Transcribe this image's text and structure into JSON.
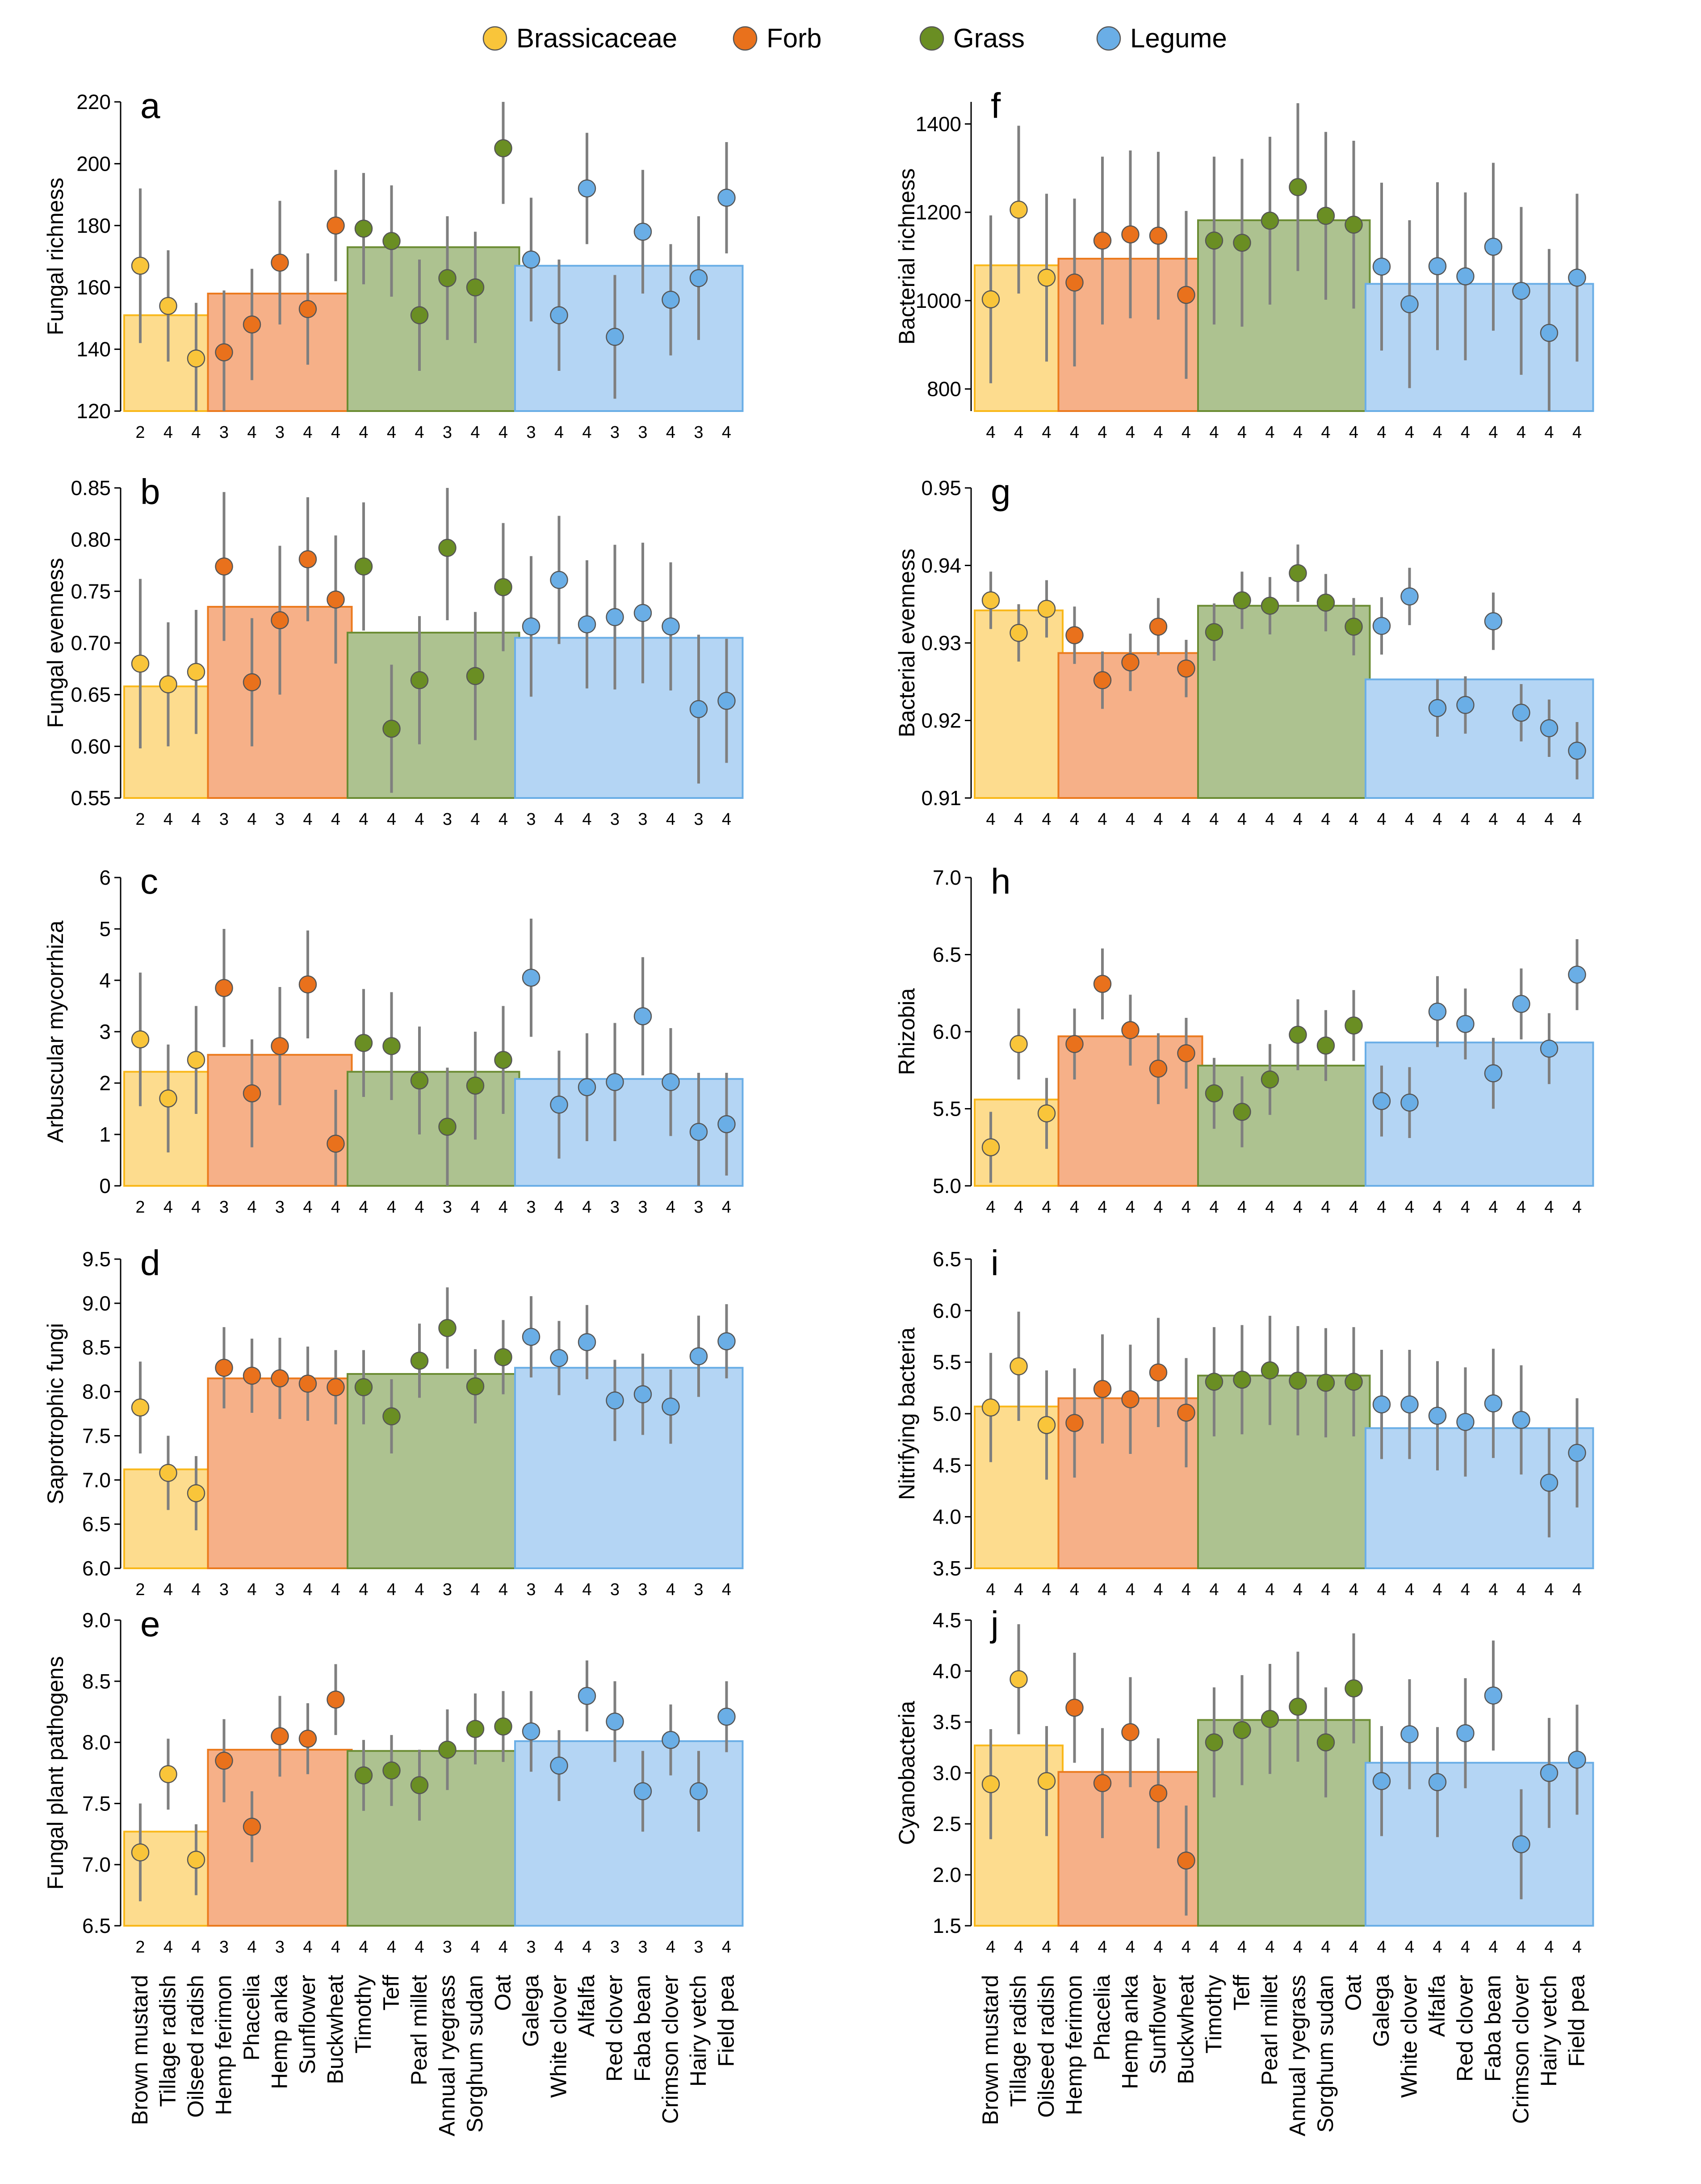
{
  "legend": [
    {
      "name": "Brassicaceae",
      "color": "#f9c53a"
    },
    {
      "name": "Forb",
      "color": "#e9711c"
    },
    {
      "name": "Grass",
      "color": "#6a8e23"
    },
    {
      "name": "Legume",
      "color": "#6aaee6"
    }
  ],
  "group_fill": {
    "Brassicaceae": {
      "fill": "#fddc8e",
      "stroke": "#f9b81a"
    },
    "Forb": {
      "fill": "#f6b088",
      "stroke": "#eb7a1e"
    },
    "Grass": {
      "fill": "#adc290",
      "stroke": "#6b8c33"
    },
    "Legume": {
      "fill": "#b4d5f4",
      "stroke": "#6aaee6"
    }
  },
  "species": [
    {
      "name": "Brown mustard",
      "group": "Brassicaceae"
    },
    {
      "name": "Tillage radish",
      "group": "Brassicaceae"
    },
    {
      "name": "Oilseed radish",
      "group": "Brassicaceae"
    },
    {
      "name": "Hemp ferimon",
      "group": "Forb"
    },
    {
      "name": "Phacelia",
      "group": "Forb"
    },
    {
      "name": "Hemp anka",
      "group": "Forb"
    },
    {
      "name": "Sunflower",
      "group": "Forb"
    },
    {
      "name": "Buckwheat",
      "group": "Forb"
    },
    {
      "name": "Timothy",
      "group": "Grass"
    },
    {
      "name": "Teff",
      "group": "Grass"
    },
    {
      "name": "Pearl millet",
      "group": "Grass"
    },
    {
      "name": "Annual ryegrass",
      "group": "Grass"
    },
    {
      "name": "Sorghum sudan",
      "group": "Grass"
    },
    {
      "name": "Oat",
      "group": "Grass"
    },
    {
      "name": "Galega",
      "group": "Legume"
    },
    {
      "name": "White clover",
      "group": "Legume"
    },
    {
      "name": "Alfalfa",
      "group": "Legume"
    },
    {
      "name": "Red clover",
      "group": "Legume"
    },
    {
      "name": "Faba bean",
      "group": "Legume"
    },
    {
      "name": "Crimson clover",
      "group": "Legume"
    },
    {
      "name": "Hairy vetch",
      "group": "Legume"
    },
    {
      "name": "Field pea",
      "group": "Legume"
    }
  ],
  "chart_data": [
    {
      "type": "scatter",
      "letter": "a",
      "ylabel": "Fungal richness",
      "ylim": [
        120,
        220
      ],
      "yticks": [
        "120",
        "140",
        "160",
        "180",
        "200",
        "220"
      ],
      "group_means": [
        151,
        158,
        173,
        167
      ],
      "means": [
        167,
        154,
        137,
        139,
        148,
        168,
        153,
        180,
        179,
        175,
        151,
        163,
        160,
        205,
        169,
        151,
        192,
        144,
        178,
        156,
        163,
        189
      ],
      "errors": [
        25,
        18,
        18,
        20,
        18,
        20,
        18,
        18,
        18,
        18,
        18,
        20,
        18,
        18,
        20,
        18,
        18,
        20,
        20,
        18,
        20,
        18
      ],
      "n": [
        "2",
        "4",
        "4",
        "3",
        "4",
        "3",
        "4",
        "4",
        "4",
        "4",
        "4",
        "3",
        "4",
        "4",
        "3",
        "4",
        "4",
        "3",
        "3",
        "4",
        "3",
        "4"
      ]
    },
    {
      "type": "scatter",
      "letter": "b",
      "ylabel": "Fungal evenness",
      "ylim": [
        0.55,
        0.85
      ],
      "yticks": [
        "0.55",
        "0.60",
        "0.65",
        "0.70",
        "0.75",
        "0.80",
        "0.85"
      ],
      "group_means": [
        0.658,
        0.735,
        0.71,
        0.705
      ],
      "means": [
        0.68,
        0.66,
        0.672,
        0.774,
        0.662,
        0.722,
        0.781,
        0.742,
        0.774,
        0.617,
        0.664,
        0.792,
        0.668,
        0.754,
        0.716,
        0.761,
        0.718,
        0.725,
        0.729,
        0.716,
        0.636,
        0.644
      ],
      "errors": [
        0.082,
        0.06,
        0.06,
        0.072,
        0.062,
        0.072,
        0.06,
        0.062,
        0.062,
        0.062,
        0.062,
        0.07,
        0.062,
        0.062,
        0.068,
        0.062,
        0.062,
        0.07,
        0.068,
        0.062,
        0.072,
        0.06
      ],
      "n": [
        "2",
        "4",
        "4",
        "3",
        "4",
        "3",
        "4",
        "4",
        "4",
        "4",
        "4",
        "3",
        "4",
        "4",
        "3",
        "4",
        "4",
        "3",
        "3",
        "4",
        "3",
        "4"
      ]
    },
    {
      "type": "scatter",
      "letter": "c",
      "ylabel": "Arbuscular mycorrhiza",
      "ylim": [
        0,
        6
      ],
      "yticks": [
        "0",
        "1",
        "2",
        "3",
        "4",
        "5",
        "6"
      ],
      "group_means": [
        2.22,
        2.55,
        2.22,
        2.08
      ],
      "means": [
        2.85,
        1.7,
        2.45,
        3.85,
        1.8,
        2.72,
        3.92,
        0.82,
        2.78,
        2.72,
        2.05,
        1.15,
        1.95,
        2.45,
        4.05,
        1.58,
        1.92,
        2.02,
        3.3,
        2.02,
        1.05,
        1.2
      ],
      "errors": [
        1.3,
        1.05,
        1.05,
        1.15,
        1.05,
        1.15,
        1.05,
        1.05,
        1.05,
        1.05,
        1.05,
        1.15,
        1.05,
        1.05,
        1.15,
        1.05,
        1.05,
        1.15,
        1.15,
        1.05,
        1.15,
        1.0
      ],
      "n": [
        "2",
        "4",
        "4",
        "3",
        "4",
        "3",
        "4",
        "4",
        "4",
        "4",
        "4",
        "3",
        "4",
        "4",
        "3",
        "4",
        "4",
        "3",
        "3",
        "4",
        "3",
        "4"
      ]
    },
    {
      "type": "scatter",
      "letter": "d",
      "ylabel": "Saprotrophic fungi",
      "ylim": [
        6.0,
        9.5
      ],
      "yticks": [
        "6.0",
        "6.5",
        "7.0",
        "7.5",
        "8.0",
        "8.5",
        "9.0",
        "9.5"
      ],
      "group_means": [
        7.12,
        8.15,
        8.2,
        8.27
      ],
      "means": [
        7.82,
        7.08,
        6.85,
        8.27,
        8.18,
        8.15,
        8.09,
        8.05,
        8.05,
        7.72,
        8.35,
        8.72,
        8.06,
        8.39,
        8.62,
        8.38,
        8.56,
        7.9,
        7.97,
        7.83,
        8.4,
        8.57
      ],
      "errors": [
        0.52,
        0.42,
        0.42,
        0.46,
        0.42,
        0.46,
        0.42,
        0.42,
        0.42,
        0.42,
        0.42,
        0.46,
        0.42,
        0.42,
        0.46,
        0.42,
        0.42,
        0.46,
        0.46,
        0.42,
        0.46,
        0.42
      ],
      "n": [
        "2",
        "4",
        "4",
        "3",
        "4",
        "3",
        "4",
        "4",
        "4",
        "4",
        "4",
        "3",
        "4",
        "4",
        "3",
        "4",
        "4",
        "3",
        "3",
        "4",
        "3",
        "4"
      ]
    },
    {
      "type": "scatter",
      "letter": "e",
      "ylabel": "Fungal plant pathogens",
      "ylim": [
        6.5,
        9.0
      ],
      "yticks": [
        "6.5",
        "7.0",
        "7.5",
        "8.0",
        "8.5",
        "9.0"
      ],
      "group_means": [
        7.27,
        7.94,
        7.93,
        8.01
      ],
      "means": [
        7.1,
        7.74,
        7.04,
        7.85,
        7.31,
        8.05,
        8.03,
        8.35,
        7.73,
        7.77,
        7.65,
        7.94,
        8.11,
        8.13,
        8.09,
        7.81,
        8.38,
        8.17,
        7.6,
        8.02,
        7.6,
        8.21
      ],
      "errors": [
        0.4,
        0.29,
        0.29,
        0.34,
        0.29,
        0.33,
        0.29,
        0.29,
        0.29,
        0.29,
        0.29,
        0.33,
        0.29,
        0.29,
        0.33,
        0.29,
        0.29,
        0.33,
        0.33,
        0.29,
        0.33,
        0.29
      ],
      "n": [
        "2",
        "4",
        "4",
        "3",
        "4",
        "3",
        "4",
        "4",
        "4",
        "4",
        "4",
        "3",
        "4",
        "4",
        "3",
        "4",
        "4",
        "3",
        "3",
        "4",
        "3",
        "4"
      ]
    },
    {
      "type": "scatter",
      "letter": "f",
      "ylabel": "Bacterial richness",
      "ylim": [
        750,
        1450
      ],
      "yticks": [
        "800",
        "1000",
        "1200",
        "1400"
      ],
      "group_means": [
        1080,
        1095,
        1182,
        1038
      ],
      "means": [
        1003,
        1206,
        1052,
        1041,
        1136,
        1150,
        1147,
        1013,
        1136,
        1131,
        1181,
        1257,
        1192,
        1172,
        1077,
        992,
        1078,
        1055,
        1122,
        1022,
        927,
        1052
      ],
      "errors": [
        190,
        190,
        190,
        190,
        190,
        190,
        190,
        190,
        190,
        190,
        190,
        190,
        190,
        190,
        190,
        190,
        190,
        190,
        190,
        190,
        190,
        190
      ],
      "n": [
        "4",
        "4",
        "4",
        "4",
        "4",
        "4",
        "4",
        "4",
        "4",
        "4",
        "4",
        "4",
        "4",
        "4",
        "4",
        "4",
        "4",
        "4",
        "4",
        "4",
        "4",
        "4"
      ]
    },
    {
      "type": "scatter",
      "letter": "g",
      "ylabel": "Bacterial evenness",
      "ylim": [
        0.91,
        0.95
      ],
      "yticks": [
        "0.91",
        "0.92",
        "0.93",
        "0.94",
        "0.95"
      ],
      "group_means": [
        0.9342,
        0.9287,
        0.9348,
        0.9253
      ],
      "means": [
        0.9355,
        0.9313,
        0.9344,
        0.931,
        0.9252,
        0.9275,
        0.9321,
        0.9267,
        0.9314,
        0.9355,
        0.9348,
        0.939,
        0.9352,
        0.9321,
        0.9322,
        0.936,
        0.9216,
        0.922,
        0.9328,
        0.921,
        0.919,
        0.9161
      ],
      "errors": [
        0.0037,
        0.0037,
        0.0037,
        0.0037,
        0.0037,
        0.0037,
        0.0037,
        0.0037,
        0.0037,
        0.0037,
        0.0037,
        0.0037,
        0.0037,
        0.0037,
        0.0037,
        0.0037,
        0.0037,
        0.0037,
        0.0037,
        0.0037,
        0.0037,
        0.0037
      ],
      "n": [
        "4",
        "4",
        "4",
        "4",
        "4",
        "4",
        "4",
        "4",
        "4",
        "4",
        "4",
        "4",
        "4",
        "4",
        "4",
        "4",
        "4",
        "4",
        "4",
        "4",
        "4",
        "4"
      ]
    },
    {
      "type": "scatter",
      "letter": "h",
      "ylabel": "Rhizobia",
      "ylim": [
        5.0,
        7.0
      ],
      "yticks": [
        "5.0",
        "5.5",
        "6.0",
        "6.5",
        "7.0"
      ],
      "group_means": [
        5.56,
        5.97,
        5.78,
        5.93
      ],
      "means": [
        5.25,
        5.92,
        5.47,
        5.92,
        6.31,
        6.01,
        5.76,
        5.86,
        5.6,
        5.48,
        5.69,
        5.98,
        5.91,
        6.04,
        5.55,
        5.54,
        6.13,
        6.05,
        5.73,
        6.18,
        5.89,
        6.37
      ],
      "errors": [
        0.23,
        0.23,
        0.23,
        0.23,
        0.23,
        0.23,
        0.23,
        0.23,
        0.23,
        0.23,
        0.23,
        0.23,
        0.23,
        0.23,
        0.23,
        0.23,
        0.23,
        0.23,
        0.23,
        0.23,
        0.23,
        0.23
      ],
      "n": [
        "4",
        "4",
        "4",
        "4",
        "4",
        "4",
        "4",
        "4",
        "4",
        "4",
        "4",
        "4",
        "4",
        "4",
        "4",
        "4",
        "4",
        "4",
        "4",
        "4",
        "4",
        "4"
      ]
    },
    {
      "type": "scatter",
      "letter": "i",
      "ylabel": "Nitrifying bacteria",
      "ylim": [
        3.5,
        6.5
      ],
      "yticks": [
        "3.5",
        "4.0",
        "4.5",
        "5.0",
        "5.5",
        "6.0",
        "6.5"
      ],
      "group_means": [
        5.07,
        5.15,
        5.37,
        4.86
      ],
      "means": [
        5.06,
        5.46,
        4.89,
        4.91,
        5.24,
        5.14,
        5.4,
        5.01,
        5.31,
        5.33,
        5.42,
        5.32,
        5.3,
        5.31,
        5.09,
        5.09,
        4.98,
        4.92,
        5.1,
        4.94,
        4.33,
        4.62
      ],
      "errors": [
        0.53,
        0.53,
        0.53,
        0.53,
        0.53,
        0.53,
        0.53,
        0.53,
        0.53,
        0.53,
        0.53,
        0.53,
        0.53,
        0.53,
        0.53,
        0.53,
        0.53,
        0.53,
        0.53,
        0.53,
        0.53,
        0.53
      ],
      "n": [
        "4",
        "4",
        "4",
        "4",
        "4",
        "4",
        "4",
        "4",
        "4",
        "4",
        "4",
        "4",
        "4",
        "4",
        "4",
        "4",
        "4",
        "4",
        "4",
        "4",
        "4",
        "4"
      ]
    },
    {
      "type": "scatter",
      "letter": "j",
      "ylabel": "Cyanobacteria",
      "ylim": [
        1.5,
        4.5
      ],
      "yticks": [
        "1.5",
        "2.0",
        "2.5",
        "3.0",
        "3.5",
        "4.0",
        "4.5"
      ],
      "group_means": [
        3.27,
        3.01,
        3.52,
        3.1
      ],
      "means": [
        2.89,
        3.92,
        2.92,
        3.64,
        2.9,
        3.4,
        2.8,
        2.14,
        3.3,
        3.42,
        3.53,
        3.65,
        3.3,
        3.83,
        2.92,
        3.38,
        2.91,
        3.39,
        3.76,
        2.3,
        3.0,
        3.13
      ],
      "errors": [
        0.54,
        0.54,
        0.54,
        0.54,
        0.54,
        0.54,
        0.54,
        0.54,
        0.54,
        0.54,
        0.54,
        0.54,
        0.54,
        0.54,
        0.54,
        0.54,
        0.54,
        0.54,
        0.54,
        0.54,
        0.54,
        0.54
      ],
      "n": [
        "4",
        "4",
        "4",
        "4",
        "4",
        "4",
        "4",
        "4",
        "4",
        "4",
        "4",
        "4",
        "4",
        "4",
        "4",
        "4",
        "4",
        "4",
        "4",
        "4",
        "4",
        "4"
      ]
    }
  ]
}
